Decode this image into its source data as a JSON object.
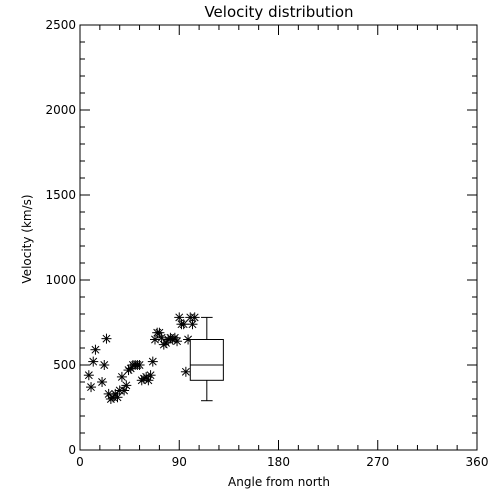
{
  "chart_data": {
    "type": "scatter",
    "title": "Velocity distribution",
    "xlabel": "Angle from north",
    "ylabel": "Velocity (km/s)",
    "xlim": [
      0,
      360
    ],
    "ylim": [
      0,
      2500
    ],
    "xticks": [
      0,
      90,
      180,
      270,
      360
    ],
    "yticks": [
      0,
      500,
      1000,
      1500,
      2000,
      2500
    ],
    "grid": false,
    "marker": "asterisk",
    "points": [
      [
        8,
        440
      ],
      [
        10,
        370
      ],
      [
        12,
        520
      ],
      [
        14,
        590
      ],
      [
        20,
        400
      ],
      [
        22,
        500
      ],
      [
        24,
        655
      ],
      [
        26,
        330
      ],
      [
        28,
        300
      ],
      [
        30,
        310
      ],
      [
        32,
        330
      ],
      [
        34,
        310
      ],
      [
        36,
        350
      ],
      [
        38,
        430
      ],
      [
        40,
        350
      ],
      [
        42,
        380
      ],
      [
        44,
        470
      ],
      [
        46,
        480
      ],
      [
        48,
        500
      ],
      [
        50,
        500
      ],
      [
        52,
        500
      ],
      [
        54,
        500
      ],
      [
        56,
        410
      ],
      [
        58,
        420
      ],
      [
        60,
        430
      ],
      [
        62,
        410
      ],
      [
        64,
        440
      ],
      [
        66,
        520
      ],
      [
        68,
        650
      ],
      [
        70,
        690
      ],
      [
        72,
        690
      ],
      [
        74,
        660
      ],
      [
        76,
        620
      ],
      [
        78,
        630
      ],
      [
        80,
        650
      ],
      [
        82,
        660
      ],
      [
        84,
        650
      ],
      [
        86,
        660
      ],
      [
        88,
        640
      ],
      [
        90,
        780
      ],
      [
        92,
        740
      ],
      [
        94,
        740
      ],
      [
        96,
        460
      ],
      [
        98,
        650
      ],
      [
        100,
        780
      ],
      [
        102,
        740
      ],
      [
        104,
        780
      ]
    ],
    "boxplot": {
      "x": 115,
      "width": 30,
      "min": 290,
      "q1": 410,
      "median": 500,
      "q3": 650,
      "max": 780
    }
  }
}
